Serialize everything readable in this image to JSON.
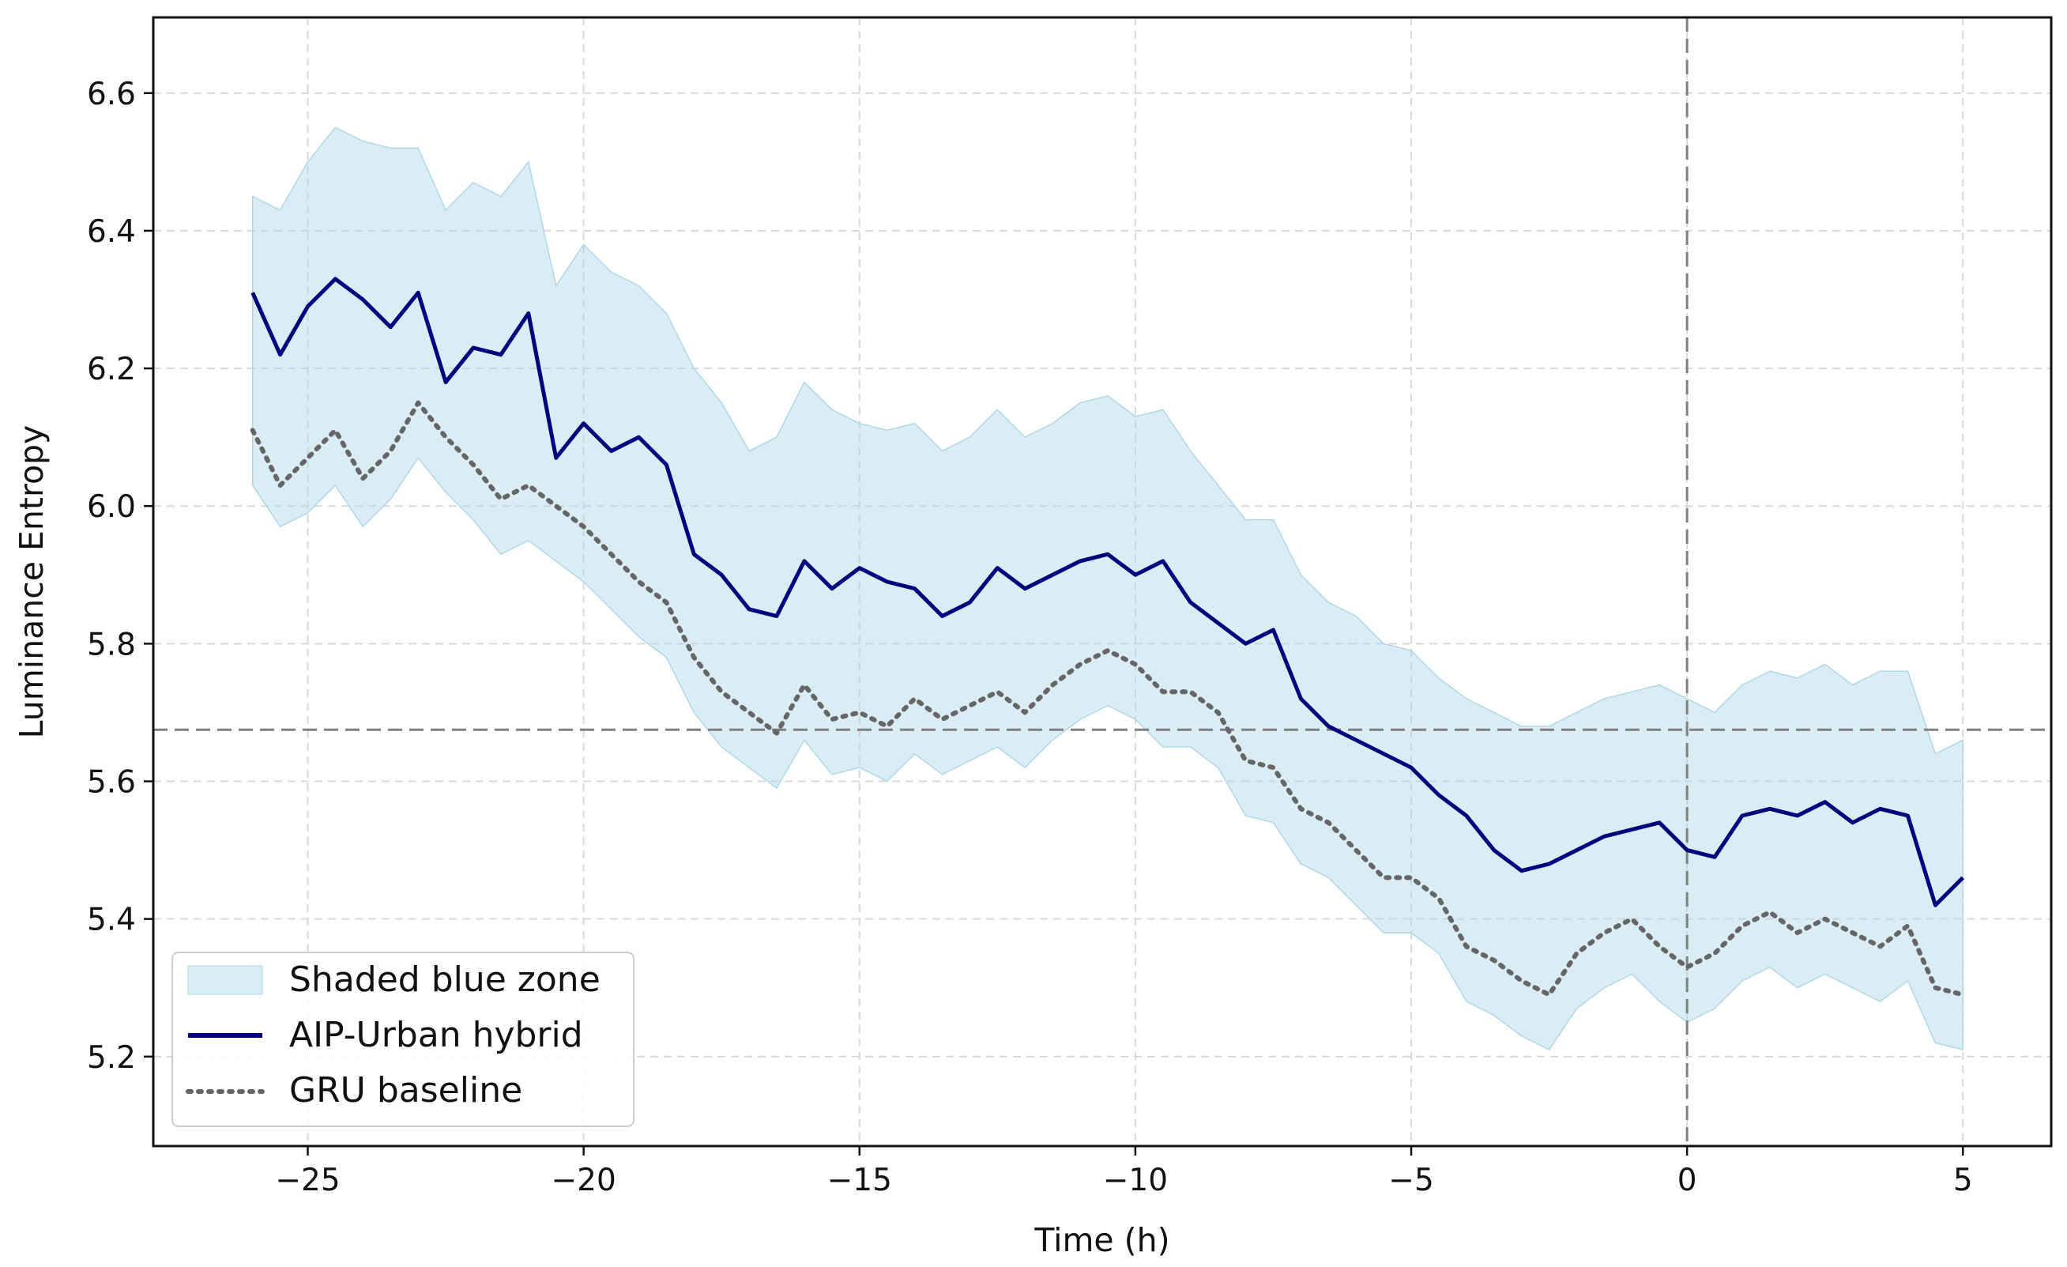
{
  "chart_data": {
    "type": "line",
    "xlabel": "Time (h)",
    "ylabel": "Luminance Entropy",
    "xlim": [
      -27.8,
      6.6
    ],
    "ylim": [
      5.07,
      6.71
    ],
    "x_ticks": [
      -25,
      -20,
      -15,
      -10,
      -5,
      0,
      5
    ],
    "x_tick_labels": [
      "−25",
      "−20",
      "−15",
      "−10",
      "−5",
      "0",
      "5"
    ],
    "y_ticks": [
      5.2,
      5.4,
      5.6,
      5.8,
      6.0,
      6.2,
      6.4,
      6.6
    ],
    "y_tick_labels": [
      "5.2",
      "5.4",
      "5.6",
      "5.8",
      "6.0",
      "6.2",
      "6.4",
      "6.6"
    ],
    "grid": true,
    "legend_position": "lower-left",
    "reference_lines": {
      "horizontal_y": 5.675,
      "vertical_x": 0
    },
    "series": [
      {
        "name": "AIP-Urban hybrid",
        "style": "solid",
        "color": "#00007f",
        "x": [
          -26,
          -25.5,
          -25,
          -24.5,
          -24,
          -23.5,
          -23,
          -22.5,
          -22,
          -21.5,
          -21,
          -20.5,
          -20,
          -19.5,
          -19,
          -18.5,
          -18,
          -17.5,
          -17,
          -16.5,
          -16,
          -15.5,
          -15,
          -14.5,
          -14,
          -13.5,
          -13,
          -12.5,
          -12,
          -11.5,
          -11,
          -10.5,
          -10,
          -9.5,
          -9,
          -8.5,
          -8,
          -7.5,
          -7,
          -6.5,
          -6,
          -5.5,
          -5,
          -4.5,
          -4,
          -3.5,
          -3,
          -2.5,
          -2,
          -1.5,
          -1,
          -0.5,
          0,
          0.5,
          1,
          1.5,
          2,
          2.5,
          3,
          3.5,
          4,
          4.5,
          5
        ],
        "values": [
          6.31,
          6.22,
          6.29,
          6.33,
          6.3,
          6.26,
          6.31,
          6.18,
          6.23,
          6.22,
          6.28,
          6.07,
          6.12,
          6.08,
          6.1,
          6.06,
          5.93,
          5.9,
          5.85,
          5.84,
          5.92,
          5.88,
          5.91,
          5.89,
          5.88,
          5.84,
          5.86,
          5.91,
          5.88,
          5.9,
          5.92,
          5.93,
          5.9,
          5.92,
          5.86,
          5.83,
          5.8,
          5.82,
          5.72,
          5.68,
          5.66,
          5.64,
          5.62,
          5.58,
          5.55,
          5.5,
          5.47,
          5.48,
          5.5,
          5.52,
          5.53,
          5.54,
          5.5,
          5.49,
          5.55,
          5.56,
          5.55,
          5.57,
          5.54,
          5.56,
          5.55,
          5.42,
          5.46
        ]
      },
      {
        "name": "GRU baseline",
        "style": "dotted",
        "color": "#666666",
        "x": [
          -26,
          -25.5,
          -25,
          -24.5,
          -24,
          -23.5,
          -23,
          -22.5,
          -22,
          -21.5,
          -21,
          -20.5,
          -20,
          -19.5,
          -19,
          -18.5,
          -18,
          -17.5,
          -17,
          -16.5,
          -16,
          -15.5,
          -15,
          -14.5,
          -14,
          -13.5,
          -13,
          -12.5,
          -12,
          -11.5,
          -11,
          -10.5,
          -10,
          -9.5,
          -9,
          -8.5,
          -8,
          -7.5,
          -7,
          -6.5,
          -6,
          -5.5,
          -5,
          -4.5,
          -4,
          -3.5,
          -3,
          -2.5,
          -2,
          -1.5,
          -1,
          -0.5,
          0,
          0.5,
          1,
          1.5,
          2,
          2.5,
          3,
          3.5,
          4,
          4.5,
          5
        ],
        "values": [
          6.11,
          6.03,
          6.07,
          6.11,
          6.04,
          6.08,
          6.15,
          6.1,
          6.06,
          6.01,
          6.03,
          6.0,
          5.97,
          5.93,
          5.89,
          5.86,
          5.78,
          5.73,
          5.7,
          5.67,
          5.74,
          5.69,
          5.7,
          5.68,
          5.72,
          5.69,
          5.71,
          5.73,
          5.7,
          5.74,
          5.77,
          5.79,
          5.77,
          5.73,
          5.73,
          5.7,
          5.63,
          5.62,
          5.56,
          5.54,
          5.5,
          5.46,
          5.46,
          5.43,
          5.36,
          5.34,
          5.31,
          5.29,
          5.35,
          5.38,
          5.4,
          5.36,
          5.33,
          5.35,
          5.39,
          5.41,
          5.38,
          5.4,
          5.38,
          5.36,
          5.39,
          5.3,
          5.29
        ]
      }
    ],
    "band": {
      "name": "Shaded blue zone",
      "color": "#add8e6",
      "x": [
        -26,
        -25.5,
        -25,
        -24.5,
        -24,
        -23.5,
        -23,
        -22.5,
        -22,
        -21.5,
        -21,
        -20.5,
        -20,
        -19.5,
        -19,
        -18.5,
        -18,
        -17.5,
        -17,
        -16.5,
        -16,
        -15.5,
        -15,
        -14.5,
        -14,
        -13.5,
        -13,
        -12.5,
        -12,
        -11.5,
        -11,
        -10.5,
        -10,
        -9.5,
        -9,
        -8.5,
        -8,
        -7.5,
        -7,
        -6.5,
        -6,
        -5.5,
        -5,
        -4.5,
        -4,
        -3.5,
        -3,
        -2.5,
        -2,
        -1.5,
        -1,
        -0.5,
        0,
        0.5,
        1,
        1.5,
        2,
        2.5,
        3,
        3.5,
        4,
        4.5,
        5
      ],
      "upper": [
        6.45,
        6.43,
        6.5,
        6.55,
        6.53,
        6.52,
        6.52,
        6.43,
        6.47,
        6.45,
        6.5,
        6.32,
        6.38,
        6.34,
        6.32,
        6.28,
        6.2,
        6.15,
        6.08,
        6.1,
        6.18,
        6.14,
        6.12,
        6.11,
        6.12,
        6.08,
        6.1,
        6.14,
        6.1,
        6.12,
        6.15,
        6.16,
        6.13,
        6.14,
        6.08,
        6.03,
        5.98,
        5.98,
        5.9,
        5.86,
        5.84,
        5.8,
        5.79,
        5.75,
        5.72,
        5.7,
        5.68,
        5.68,
        5.7,
        5.72,
        5.73,
        5.74,
        5.72,
        5.7,
        5.74,
        5.76,
        5.75,
        5.77,
        5.74,
        5.76,
        5.76,
        5.64,
        5.66
      ],
      "lower": [
        6.03,
        5.97,
        5.99,
        6.03,
        5.97,
        6.01,
        6.07,
        6.02,
        5.98,
        5.93,
        5.95,
        5.92,
        5.89,
        5.85,
        5.81,
        5.78,
        5.7,
        5.65,
        5.62,
        5.59,
        5.66,
        5.61,
        5.62,
        5.6,
        5.64,
        5.61,
        5.63,
        5.65,
        5.62,
        5.66,
        5.69,
        5.71,
        5.69,
        5.65,
        5.65,
        5.62,
        5.55,
        5.54,
        5.48,
        5.46,
        5.42,
        5.38,
        5.38,
        5.35,
        5.28,
        5.26,
        5.23,
        5.21,
        5.27,
        5.3,
        5.32,
        5.28,
        5.25,
        5.27,
        5.31,
        5.33,
        5.3,
        5.32,
        5.3,
        5.28,
        5.31,
        5.22,
        5.21
      ]
    }
  }
}
